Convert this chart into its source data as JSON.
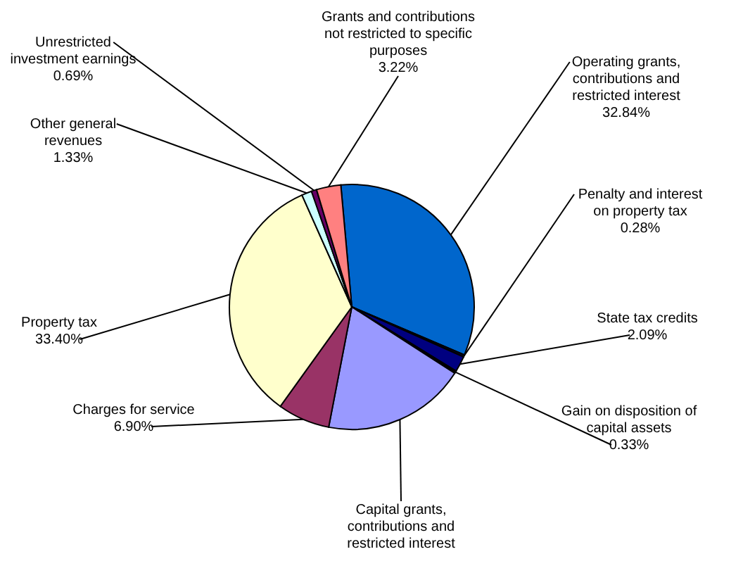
{
  "chart_data": {
    "type": "pie",
    "categories": [
      "Operating grants, contributions and restricted interest",
      "Penalty and interest on property tax",
      "State tax credits",
      "Gain on disposition of capital assets",
      "Capital grants, contributions and restricted interest",
      "Charges for service",
      "Property tax",
      "Other general revenues",
      "Unrestricted investment earnings",
      "Grants and contributions not restricted to specific purposes"
    ],
    "values": [
      32.84,
      0.28,
      2.09,
      0.33,
      18.92,
      6.9,
      33.4,
      1.33,
      0.69,
      3.22
    ],
    "value_labels": [
      "32.84%",
      "0.28%",
      "2.09%",
      "0.33%",
      null,
      "6.90%",
      "33.40%",
      "1.33%",
      "0.69%",
      "3.22%"
    ],
    "colors": [
      "#0066cc",
      "#000033",
      "#000080",
      "#000000",
      "#9999ff",
      "#993366",
      "#ffffcc",
      "#ccffff",
      "#660066",
      "#ff8080"
    ]
  }
}
